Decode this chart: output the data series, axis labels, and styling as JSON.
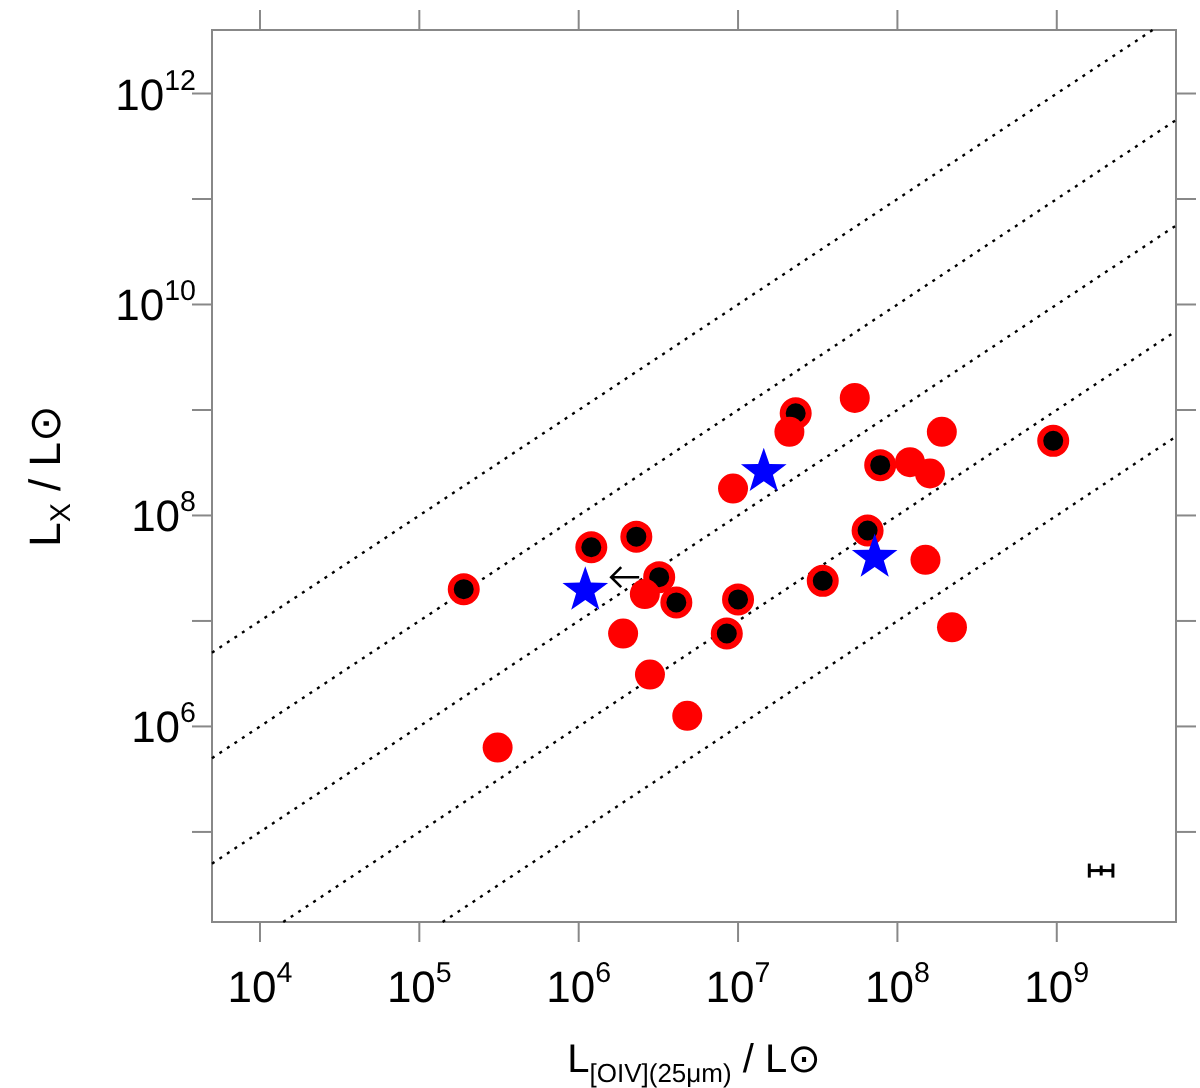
{
  "chart_data": {
    "type": "scatter",
    "xlabel": "L$_{[OIV](25μm)}$ / L⊙",
    "ylabel": "L$_{X}$ / L⊙",
    "log": "xy",
    "xlim": [
      5000,
      5600000000.0
    ],
    "ylim": [
      14000,
      4000000000000.0
    ],
    "xticks": [
      {
        "value": 10000,
        "label": "10$^{4}$"
      },
      {
        "value": 100000,
        "label": "10$^{5}$"
      },
      {
        "value": 1000000,
        "label": "10$^{6}$"
      },
      {
        "value": 10000000,
        "label": "10$^{7}$"
      },
      {
        "value": 100000000,
        "label": "10$^{8}$"
      },
      {
        "value": 1000000000,
        "label": "10$^{9}$"
      }
    ],
    "yticks": [
      {
        "value": 100000,
        "label": null
      },
      {
        "value": 1000000,
        "label": "10$^{6}$"
      },
      {
        "value": 10000000,
        "label": null
      },
      {
        "value": 100000000,
        "label": "10$^{8}$"
      },
      {
        "value": 1000000000,
        "label": null
      },
      {
        "value": 10000000000,
        "label": "10$^{10}$"
      },
      {
        "value": 100000000000,
        "label": null
      },
      {
        "value": 1000000000000,
        "label": "10$^{12}$"
      }
    ],
    "series": [
      {
        "type": "line",
        "color": "#000000",
        "line_style": "dotted",
        "x": [
          5000,
          4000000000.0
        ],
        "values": [
          5000000.0,
          4000000000000.0
        ]
      },
      {
        "type": "line",
        "color": "#000000",
        "line_style": "dotted",
        "x": [
          5000,
          5600000000.0
        ],
        "values": [
          500000.0,
          560000000000.0
        ]
      },
      {
        "type": "line",
        "color": "#000000",
        "line_style": "dotted",
        "x": [
          5000,
          5600000000.0
        ],
        "values": [
          50000.0,
          56000000000.0
        ]
      },
      {
        "type": "line",
        "color": "#000000",
        "line_style": "dotted",
        "x": [
          14000,
          5600000000.0
        ],
        "values": [
          14000,
          5600000000.0
        ]
      },
      {
        "type": "line",
        "color": "#000000",
        "line_style": "dotted",
        "x": [
          140000,
          5600000000.0
        ],
        "values": [
          14000,
          560000000.0
        ]
      },
      {
        "color": "#ff0000",
        "marker": "circle",
        "x": [
          190000,
          1200000.0,
          2300000.0,
          3200000.0,
          4100000.0,
          8500000.0,
          10000000.0,
          23000000.0,
          34000000.0,
          65000000.0,
          78000000.0,
          950000000.0
        ],
        "values": [
          20000000.0,
          50000000.0,
          63000000.0,
          26000000.0,
          15000000.0,
          7600000.0,
          16000000.0,
          930000000.0,
          24000000.0,
          72000000.0,
          300000000.0,
          510000000.0
        ]
      },
      {
        "color": "#ff0000",
        "marker": "circle",
        "x": [
          54000000.0,
          21000000.0,
          9300000.0,
          120000000.0,
          160000000.0,
          190000000.0,
          150000000.0,
          220000000.0,
          2600000.0,
          1900000.0,
          2800000.0,
          4800000.0,
          310000
        ],
        "values": [
          1300000000.0,
          620000000.0,
          180000000.0,
          320000000.0,
          250000000.0,
          620000000.0,
          38000000.0,
          8700000.0,
          18000000.0,
          7600000.0,
          3100000.0,
          1260000.0,
          630000.0
        ]
      },
      {
        "color": "#0000ff",
        "marker": "star",
        "x": [
          1100000.0,
          14500000.0,
          72000000.0
        ],
        "values": [
          19500000.0,
          260000000.0,
          40000000.0
        ]
      },
      {
        "color": "#000000",
        "marker": "cross",
        "x": [
          1900000000.0
        ],
        "values": [
          43000
        ],
        "xerrors": [
          [
            1600000000.0,
            2250000000.0
          ]
        ]
      }
    ]
  }
}
